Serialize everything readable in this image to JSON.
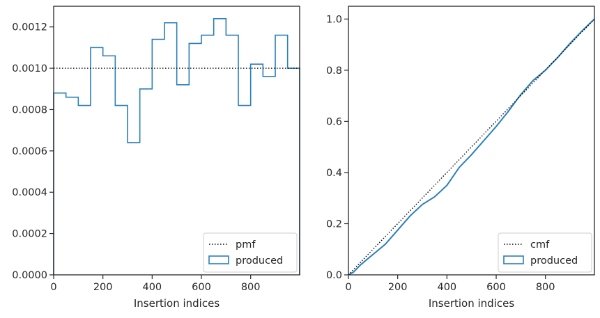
{
  "chart_data": [
    {
      "type": "histogram",
      "xlabel": "Insertion indices",
      "ylabel": "",
      "xlim": [
        0,
        999
      ],
      "ylim": [
        0,
        0.0013
      ],
      "xticks": [
        "0",
        "200",
        "400",
        "600",
        "800"
      ],
      "yticks": [
        "0.0000",
        "0.0002",
        "0.0004",
        "0.0006",
        "0.0008",
        "0.0010",
        "0.0012"
      ],
      "legend": {
        "position": "lower-right",
        "entries": [
          "pmf",
          "produced"
        ]
      },
      "pmf": {
        "name": "pmf",
        "value": 0.001,
        "style": "dotted",
        "color": "#000000"
      },
      "produced": {
        "name": "produced",
        "color": "#2a7fb8",
        "bin_edges": [
          0,
          50,
          100,
          150,
          200,
          250,
          300,
          350,
          400,
          450,
          500,
          550,
          600,
          650,
          700,
          750,
          800,
          850,
          900,
          950,
          999
        ],
        "values": [
          0.00088,
          0.00086,
          0.00082,
          0.0011,
          0.00106,
          0.00082,
          0.00064,
          0.0009,
          0.00114,
          0.00122,
          0.00092,
          0.00112,
          0.00116,
          0.00124,
          0.00116,
          0.00082,
          0.00102,
          0.00096,
          0.00116,
          0.001
        ]
      }
    },
    {
      "type": "line",
      "xlabel": "Insertion indices",
      "ylabel": "",
      "xlim": [
        0,
        999
      ],
      "ylim": [
        0,
        1.05
      ],
      "xticks": [
        "0",
        "200",
        "400",
        "600",
        "800"
      ],
      "yticks": [
        "0.0",
        "0.2",
        "0.4",
        "0.6",
        "0.8",
        "1.0"
      ],
      "legend": {
        "position": "lower-right",
        "entries": [
          "cmf",
          "produced"
        ]
      },
      "cmf": {
        "name": "cmf",
        "x": [
          0,
          999
        ],
        "y": [
          0,
          1.0
        ],
        "style": "dotted",
        "color": "#000000"
      },
      "produced": {
        "name": "produced",
        "color": "#2a7fb8",
        "x": [
          0,
          20,
          50,
          100,
          150,
          200,
          250,
          300,
          350,
          400,
          450,
          500,
          550,
          600,
          650,
          700,
          750,
          800,
          850,
          900,
          950,
          999
        ],
        "y": [
          0,
          0.01,
          0.04,
          0.08,
          0.12,
          0.175,
          0.23,
          0.275,
          0.305,
          0.35,
          0.42,
          0.47,
          0.525,
          0.58,
          0.64,
          0.705,
          0.76,
          0.8,
          0.85,
          0.905,
          0.955,
          1.0
        ]
      }
    }
  ]
}
